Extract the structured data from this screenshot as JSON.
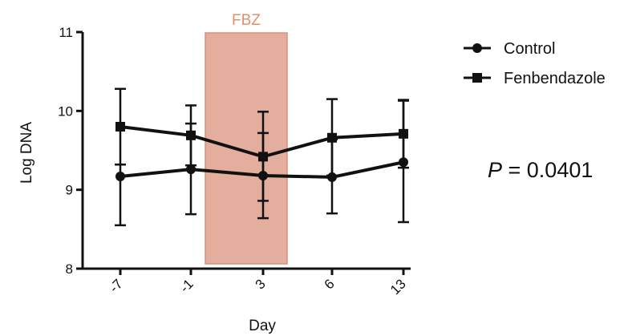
{
  "chart_data": {
    "type": "line",
    "title": "",
    "xlabel": "Day",
    "ylabel": "Log DNA",
    "categories": [
      "-7",
      "-1",
      "3",
      "6",
      "13"
    ],
    "y_ticks": [
      "8",
      "9",
      "10",
      "11"
    ],
    "ylim": [
      8,
      11
    ],
    "grid": false,
    "legend_position": "right",
    "series": [
      {
        "name": "Control",
        "marker": "circle",
        "values": [
          9.17,
          9.26,
          9.18,
          9.16,
          9.35
        ],
        "error_upper": [
          9.32,
          9.84,
          9.72,
          9.64,
          10.13
        ],
        "error_lower": [
          8.55,
          8.69,
          8.64,
          8.7,
          8.59
        ]
      },
      {
        "name": "Fenbendazole",
        "marker": "square",
        "values": [
          9.8,
          9.69,
          9.42,
          9.66,
          9.71
        ],
        "error_upper": [
          10.28,
          10.07,
          9.99,
          10.15,
          10.14
        ],
        "error_lower": [
          9.32,
          9.31,
          8.86,
          9.18,
          9.28
        ]
      }
    ],
    "treatment_band": {
      "label": "FBZ",
      "from_category": "-1",
      "to_category": "3",
      "color": "#d98f78"
    },
    "annotation": {
      "p_symbol": "P",
      "p_rest": " = 0.0401"
    }
  },
  "colors": {
    "line": "#111111",
    "band_fill": "#d98f78",
    "band_label": "#e0906e"
  }
}
